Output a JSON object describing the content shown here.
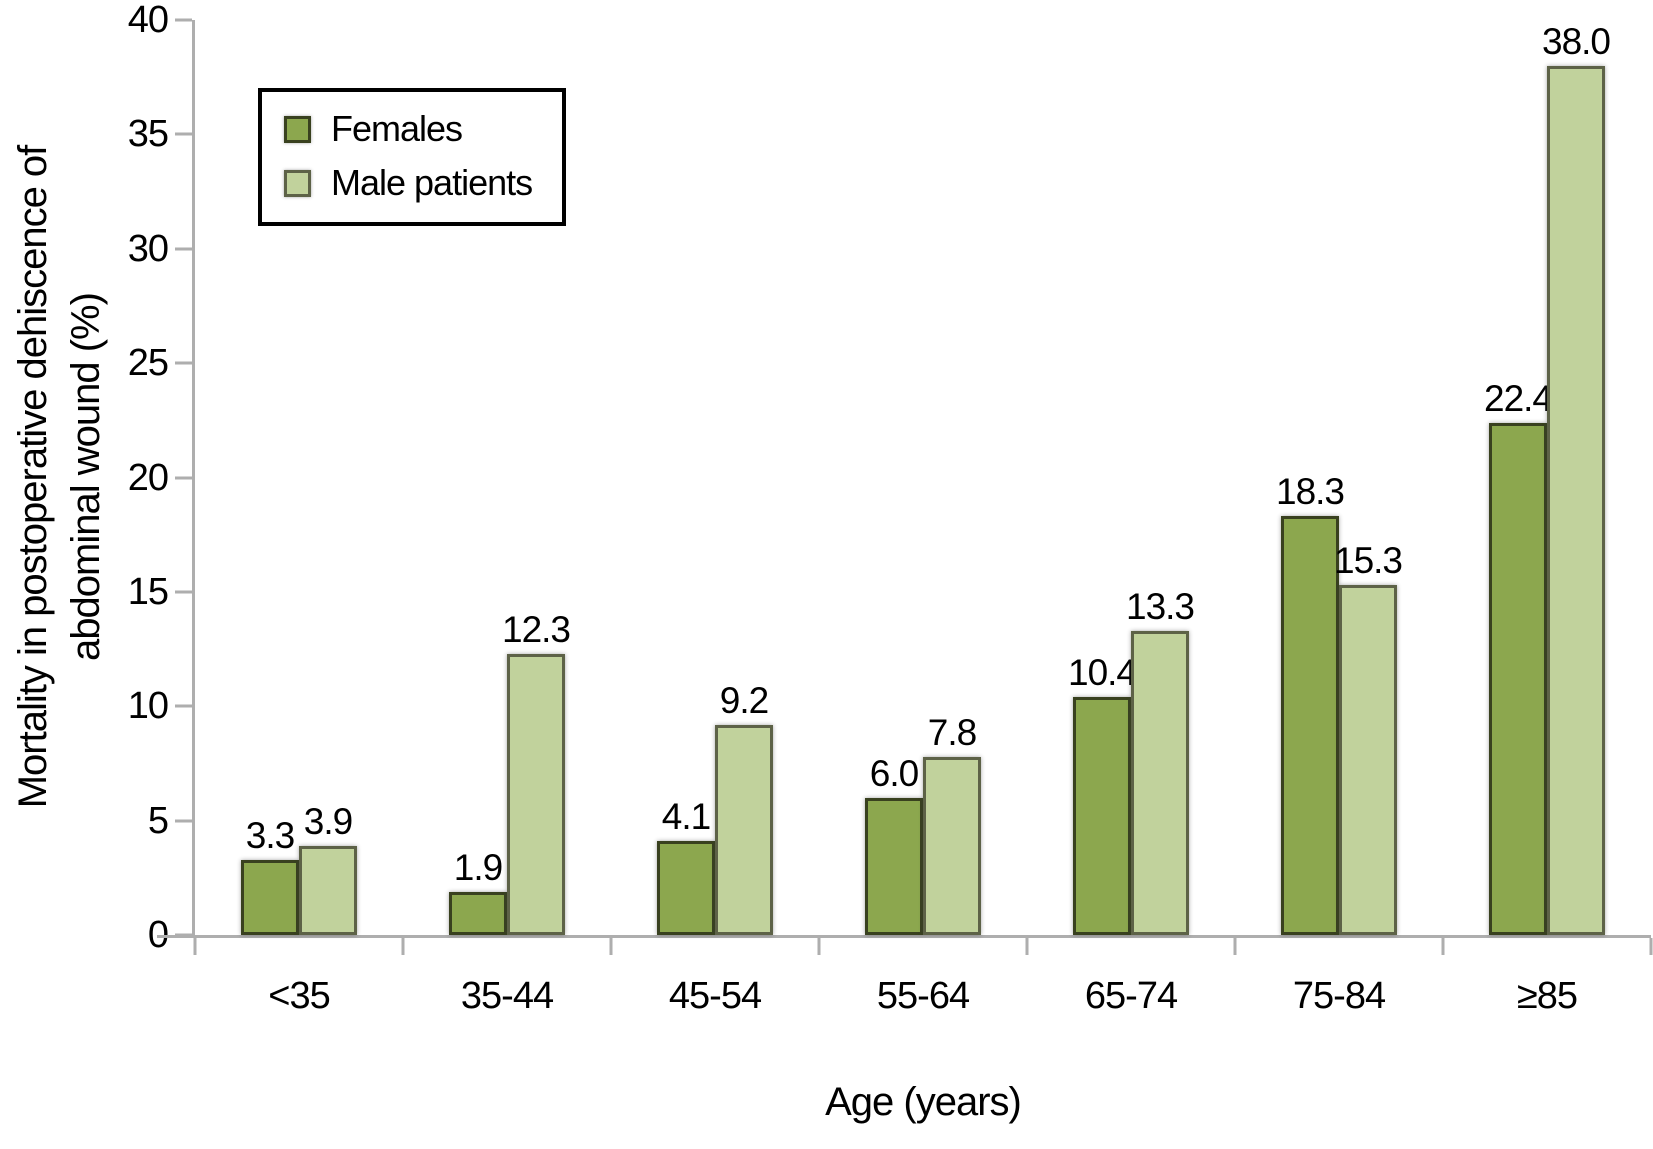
{
  "chart_data": {
    "type": "bar",
    "title": "",
    "categories": [
      "<35",
      "35-44",
      "45-54",
      "55-64",
      "65-74",
      "75-84",
      "≥85"
    ],
    "series": [
      {
        "name": "Females",
        "fill": "#8ca74e",
        "border": "#39411f",
        "values": [
          3.3,
          1.9,
          4.1,
          6.0,
          10.4,
          18.3,
          22.4
        ]
      },
      {
        "name": "Male patients",
        "fill": "#c1d29c",
        "border": "#5d6247",
        "values": [
          3.9,
          12.3,
          9.2,
          7.8,
          13.3,
          15.3,
          38.0
        ]
      }
    ],
    "value_labels_decimals": 1,
    "xlabel": "Age (years)",
    "ylabel_lines": [
      "Mortality in postoperative dehiscence of",
      "abdominal wound (%)"
    ],
    "ylim": [
      0,
      40
    ],
    "yticks": [
      0,
      5,
      10,
      15,
      20,
      25,
      30,
      35,
      40
    ],
    "grid": false,
    "legend_position": "top-left",
    "axis_color": "#aeaeae",
    "text_color": "#000000"
  }
}
